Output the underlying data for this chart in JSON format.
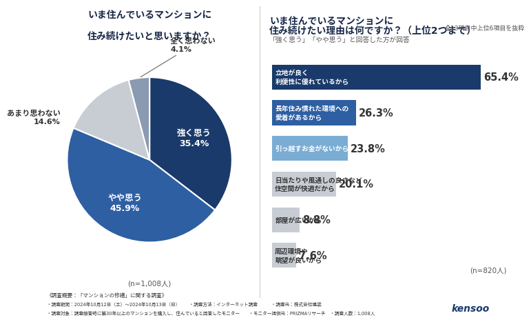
{
  "pie_title_l1": "いま住んでいるマンションに",
  "pie_title_l2": "住み続けたいと思いますか？",
  "pie_labels": [
    "強く思う",
    "やや思う",
    "あまり思わない",
    "全く思わない"
  ],
  "pie_values": [
    35.4,
    45.9,
    14.6,
    4.1
  ],
  "pie_colors": [
    "#1a3a6b",
    "#2e5fa3",
    "#c8cdd4",
    "#8a9ab0"
  ],
  "pie_n": "(n=1,008人)",
  "bar_title_l1": "いま住んでいるマンションに",
  "bar_title_l2": "住み続けたい理由は何ですか？（上位2つまで）",
  "bar_subtitle1": "全13項目中上位6項目を抜粋",
  "bar_subtitle2": "「強く思う」「やや思う」と回答した方が回答",
  "bar_categories": [
    "立地が良く\n利便性に優れているから",
    "長年住み慣れた環境への\n愛着があるから",
    "引っ越すお金がないから",
    "日当たりや風通しの良さなど\n住空間が快適だから",
    "部屋が広いから",
    "周辺環境や\n眺望が良いから"
  ],
  "bar_values": [
    65.4,
    26.3,
    23.8,
    20.1,
    8.8,
    7.6
  ],
  "bar_colors": [
    "#1a3a6b",
    "#2e5fa3",
    "#7aadd4",
    "#c8cdd4",
    "#c8cdd4",
    "#c8cdd4"
  ],
  "bar_label_colors": [
    "#ffffff",
    "#ffffff",
    "#ffffff",
    "#333333",
    "#333333",
    "#333333"
  ],
  "bar_pct_colors": [
    "#1a3a6b",
    "#2e5fa3",
    "#7aadd4",
    "#333333",
    "#333333",
    "#333333"
  ],
  "bar_n": "(n=820人)",
  "footer_line1": "《調査概要：「マンションの修繕」に関する調査》",
  "footer_line2": "・調査期間：2024年10月12日（土）～2024年10月13日（日）　　・調査方法：インターネット調査　　　・調査元：株式会社建装",
  "footer_line3": "・調査対象：調査解答時に築30年以上のマンションを購入し、住んでいると回答したモニター　　・モニター提供元：PRIZMAリサーチ　・調査人数：1,008人",
  "bg_color": "#ffffff",
  "divider_color": "#cccccc"
}
